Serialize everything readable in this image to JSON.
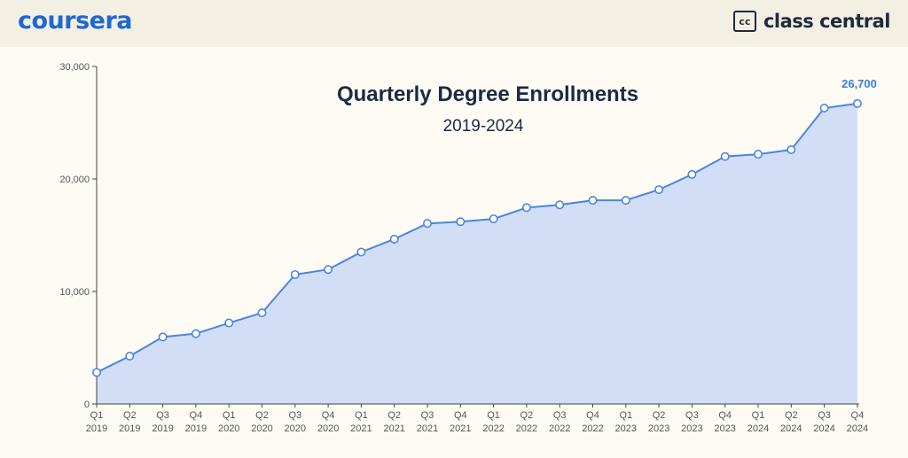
{
  "header": {
    "left_logo_text": "coursera",
    "right_badge_text": "cc",
    "right_logo_text": "class central"
  },
  "colors": {
    "line": "#4a86e0",
    "fill": "#d1def5",
    "axis": "#444444",
    "label": "#555555",
    "title": "#1a2b45",
    "highlight": "#3a7fe0",
    "header_bg": "#f3efe3",
    "page_bg": "#fdfbf4"
  },
  "chart_data": {
    "type": "area",
    "title": "Quarterly Degree Enrollments",
    "subtitle": "2019-2024",
    "categories": [
      [
        "Q1",
        "2019"
      ],
      [
        "Q2",
        "2019"
      ],
      [
        "Q3",
        "2019"
      ],
      [
        "Q4",
        "2019"
      ],
      [
        "Q1",
        "2020"
      ],
      [
        "Q2",
        "2020"
      ],
      [
        "Q3",
        "2020"
      ],
      [
        "Q4",
        "2020"
      ],
      [
        "Q1",
        "2021"
      ],
      [
        "Q2",
        "2021"
      ],
      [
        "Q3",
        "2021"
      ],
      [
        "Q4",
        "2021"
      ],
      [
        "Q1",
        "2022"
      ],
      [
        "Q2",
        "2022"
      ],
      [
        "Q3",
        "2022"
      ],
      [
        "Q4",
        "2022"
      ],
      [
        "Q1",
        "2023"
      ],
      [
        "Q2",
        "2023"
      ],
      [
        "Q3",
        "2023"
      ],
      [
        "Q4",
        "2023"
      ],
      [
        "Q1",
        "2024"
      ],
      [
        "Q2",
        "2024"
      ],
      [
        "Q3",
        "2024"
      ],
      [
        "Q4",
        "2024"
      ]
    ],
    "values": [
      2800,
      4250,
      5950,
      6250,
      7200,
      8100,
      11500,
      11950,
      13500,
      14650,
      16050,
      16200,
      16450,
      17450,
      17700,
      18100,
      18100,
      19050,
      20400,
      22000,
      22200,
      22600,
      26300,
      26700
    ],
    "ylim": [
      0,
      30000
    ],
    "yticks": [
      0,
      10000,
      20000,
      30000
    ],
    "ytick_labels": [
      "0",
      "10,000",
      "20,000",
      "30,000"
    ],
    "last_value_label": "26,700",
    "grid": false,
    "legend": "none"
  }
}
